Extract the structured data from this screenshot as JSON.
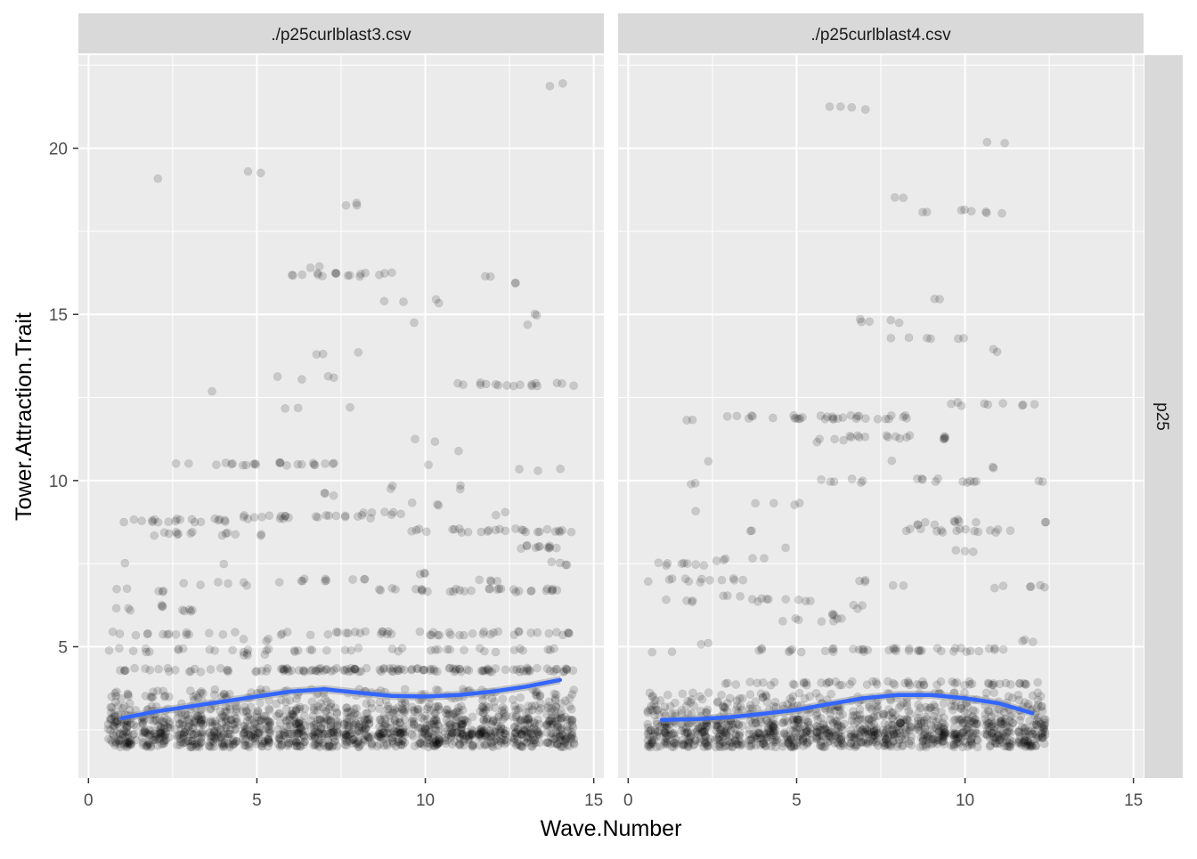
{
  "chart_data": {
    "type": "scatter",
    "xlabel": "Wave.Number",
    "ylabel": "Tower.Attraction.Trait",
    "xlim": [
      -0.3,
      15.3
    ],
    "ylim": [
      1.05,
      22.8
    ],
    "x_ticks": [
      0,
      5,
      10,
      15
    ],
    "y_ticks": [
      5,
      10,
      15,
      20
    ],
    "x_tick_labels": [
      "0",
      "5",
      "10",
      "15"
    ],
    "y_tick_labels": [
      "5",
      "10",
      "15",
      "20"
    ],
    "grid": true,
    "row_strip": "p25",
    "point_color": "#000000",
    "point_alpha": 0.15,
    "smooth_color": "#3366FF",
    "panels": [
      {
        "strip": "./p25curlblast3.csv",
        "common_levels": [
          [
            2.2,
            40
          ],
          [
            2.6,
            30
          ],
          [
            3.0,
            20
          ],
          [
            3.5,
            10
          ],
          [
            4.3,
            5
          ],
          [
            4.9,
            3
          ]
        ],
        "waves": [
          {
            "wave": 1,
            "levels": [
              [
                5.4,
                3
              ],
              [
                6.1,
                3
              ],
              [
                6.7,
                2
              ],
              [
                7.5,
                1
              ],
              [
                8.8,
                2
              ]
            ]
          },
          {
            "wave": 2,
            "levels": [
              [
                5.4,
                5
              ],
              [
                6.2,
                3
              ],
              [
                6.7,
                3
              ],
              [
                8.4,
                3
              ],
              [
                8.8,
                6
              ],
              [
                19.05,
                1
              ]
            ]
          },
          {
            "wave": 3,
            "levels": [
              [
                5.4,
                4
              ],
              [
                6.1,
                5
              ],
              [
                6.9,
                2
              ],
              [
                8.4,
                5
              ],
              [
                8.8,
                6
              ],
              [
                10.5,
                2
              ]
            ]
          },
          {
            "wave": 4,
            "levels": [
              [
                5.4,
                3
              ],
              [
                6.9,
                2
              ],
              [
                7.5,
                1
              ],
              [
                8.4,
                4
              ],
              [
                8.8,
                5
              ],
              [
                10.5,
                4
              ],
              [
                12.7,
                1
              ]
            ]
          },
          {
            "wave": 5,
            "levels": [
              [
                4.8,
                5
              ],
              [
                5.2,
                3
              ],
              [
                6.9,
                2
              ],
              [
                8.4,
                2
              ],
              [
                8.9,
                6
              ],
              [
                10.5,
                5
              ],
              [
                19.3,
                2
              ]
            ]
          },
          {
            "wave": 6,
            "levels": [
              [
                4.3,
                8
              ],
              [
                5.4,
                3
              ],
              [
                7.0,
                4
              ],
              [
                8.9,
                6
              ],
              [
                10.5,
                6
              ],
              [
                12.2,
                2
              ],
              [
                13.1,
                2
              ],
              [
                16.2,
                3
              ]
            ]
          },
          {
            "wave": 7,
            "levels": [
              [
                4.3,
                8
              ],
              [
                5.4,
                4
              ],
              [
                7.0,
                3
              ],
              [
                8.9,
                5
              ],
              [
                9.6,
                3
              ],
              [
                10.5,
                6
              ],
              [
                13.1,
                2
              ],
              [
                13.8,
                2
              ],
              [
                16.2,
                6
              ],
              [
                16.4,
                2
              ]
            ]
          },
          {
            "wave": 8,
            "levels": [
              [
                4.3,
                8
              ],
              [
                5.4,
                5
              ],
              [
                7.0,
                3
              ],
              [
                8.9,
                4
              ],
              [
                9.0,
                3
              ],
              [
                12.2,
                1
              ],
              [
                13.8,
                1
              ],
              [
                16.2,
                5
              ],
              [
                18.3,
                3
              ]
            ]
          },
          {
            "wave": 9,
            "levels": [
              [
                4.3,
                8
              ],
              [
                5.4,
                6
              ],
              [
                6.7,
                4
              ],
              [
                9.0,
                4
              ],
              [
                9.8,
                2
              ],
              [
                15.4,
                2
              ],
              [
                16.2,
                3
              ]
            ]
          },
          {
            "wave": 10,
            "levels": [
              [
                4.3,
                7
              ],
              [
                5.4,
                6
              ],
              [
                6.7,
                5
              ],
              [
                7.2,
                3
              ],
              [
                8.5,
                4
              ],
              [
                9.3,
                3
              ],
              [
                10.5,
                1
              ],
              [
                11.2,
                2
              ],
              [
                14.7,
                1
              ],
              [
                15.4,
                2
              ]
            ]
          },
          {
            "wave": 11,
            "levels": [
              [
                4.3,
                6
              ],
              [
                5.4,
                5
              ],
              [
                6.7,
                6
              ],
              [
                8.5,
                5
              ],
              [
                9.8,
                2
              ],
              [
                10.9,
                1
              ],
              [
                12.9,
                2
              ]
            ]
          },
          {
            "wave": 12,
            "levels": [
              [
                4.3,
                6
              ],
              [
                5.4,
                5
              ],
              [
                6.7,
                5
              ],
              [
                7.0,
                4
              ],
              [
                8.5,
                6
              ],
              [
                9.0,
                2
              ],
              [
                12.9,
                6
              ],
              [
                16.1,
                2
              ]
            ]
          },
          {
            "wave": 13,
            "levels": [
              [
                4.3,
                6
              ],
              [
                5.4,
                5
              ],
              [
                6.7,
                5
              ],
              [
                8.0,
                6
              ],
              [
                8.5,
                6
              ],
              [
                10.3,
                2
              ],
              [
                12.9,
                6
              ],
              [
                14.7,
                1
              ],
              [
                15.0,
                2
              ],
              [
                15.9,
                2
              ]
            ]
          },
          {
            "wave": 14,
            "levels": [
              [
                4.3,
                6
              ],
              [
                5.4,
                6
              ],
              [
                6.7,
                6
              ],
              [
                7.5,
                4
              ],
              [
                8.0,
                5
              ],
              [
                8.5,
                6
              ],
              [
                10.4,
                1
              ],
              [
                12.9,
                3
              ],
              [
                21.9,
                2
              ]
            ]
          }
        ],
        "smooth": {
          "x": [
            1,
            2,
            3,
            4,
            5,
            6,
            7,
            8,
            9,
            10,
            11,
            12,
            13,
            14
          ],
          "y": [
            2.85,
            3.05,
            3.2,
            3.35,
            3.5,
            3.65,
            3.72,
            3.62,
            3.52,
            3.5,
            3.55,
            3.65,
            3.8,
            4.0
          ]
        }
      },
      {
        "strip": "./p25curlblast4.csv",
        "common_levels": [
          [
            2.2,
            40
          ],
          [
            2.6,
            30
          ],
          [
            3.0,
            15
          ],
          [
            3.4,
            10
          ]
        ],
        "waves": [
          {
            "wave": 1,
            "levels": [
              [
                4.8,
                2
              ],
              [
                6.4,
                1
              ],
              [
                7.0,
                3
              ],
              [
                7.5,
                3
              ]
            ]
          },
          {
            "wave": 2,
            "levels": [
              [
                5.1,
                2
              ],
              [
                6.4,
                3
              ],
              [
                7.0,
                5
              ],
              [
                7.5,
                5
              ],
              [
                9.1,
                1
              ],
              [
                9.9,
                2
              ],
              [
                10.6,
                1
              ],
              [
                11.8,
                2
              ]
            ]
          },
          {
            "wave": 3,
            "levels": [
              [
                3.9,
                3
              ],
              [
                6.5,
                3
              ],
              [
                7.0,
                4
              ],
              [
                7.6,
                3
              ],
              [
                11.9,
                2
              ]
            ]
          },
          {
            "wave": 4,
            "levels": [
              [
                3.9,
                5
              ],
              [
                4.9,
                3
              ],
              [
                6.4,
                5
              ],
              [
                7.6,
                2
              ],
              [
                8.5,
                2
              ],
              [
                9.3,
                2
              ],
              [
                11.9,
                4
              ]
            ]
          },
          {
            "wave": 5,
            "levels": [
              [
                3.9,
                6
              ],
              [
                4.9,
                4
              ],
              [
                5.8,
                3
              ],
              [
                6.4,
                4
              ],
              [
                8.0,
                1
              ],
              [
                9.3,
                2
              ],
              [
                11.9,
                6
              ]
            ]
          },
          {
            "wave": 6,
            "levels": [
              [
                3.9,
                7
              ],
              [
                4.9,
                4
              ],
              [
                5.8,
                4
              ],
              [
                6.0,
                3
              ],
              [
                10.0,
                3
              ],
              [
                11.2,
                4
              ],
              [
                11.9,
                8
              ],
              [
                21.2,
                2
              ]
            ]
          },
          {
            "wave": 7,
            "levels": [
              [
                3.9,
                6
              ],
              [
                4.9,
                6
              ],
              [
                6.2,
                3
              ],
              [
                7.0,
                3
              ],
              [
                10.0,
                3
              ],
              [
                11.3,
                5
              ],
              [
                11.9,
                6
              ],
              [
                14.8,
                3
              ],
              [
                21.2,
                2
              ]
            ]
          },
          {
            "wave": 8,
            "levels": [
              [
                3.9,
                7
              ],
              [
                4.9,
                7
              ],
              [
                6.8,
                2
              ],
              [
                8.5,
                2
              ],
              [
                10.6,
                1
              ],
              [
                11.3,
                6
              ],
              [
                11.9,
                6
              ],
              [
                14.3,
                2
              ],
              [
                14.8,
                2
              ],
              [
                18.5,
                2
              ]
            ]
          },
          {
            "wave": 9,
            "levels": [
              [
                3.9,
                7
              ],
              [
                4.9,
                6
              ],
              [
                8.5,
                4
              ],
              [
                8.7,
                4
              ],
              [
                10.0,
                5
              ],
              [
                11.3,
                5
              ],
              [
                14.3,
                2
              ],
              [
                15.5,
                2
              ],
              [
                18.1,
                2
              ]
            ]
          },
          {
            "wave": 10,
            "levels": [
              [
                3.9,
                7
              ],
              [
                4.9,
                6
              ],
              [
                7.9,
                3
              ],
              [
                8.5,
                5
              ],
              [
                8.8,
                5
              ],
              [
                10.0,
                5
              ],
              [
                12.3,
                3
              ],
              [
                14.3,
                2
              ],
              [
                18.1,
                3
              ]
            ]
          },
          {
            "wave": 11,
            "levels": [
              [
                3.9,
                8
              ],
              [
                4.9,
                4
              ],
              [
                6.8,
                2
              ],
              [
                8.5,
                4
              ],
              [
                10.4,
                2
              ],
              [
                12.3,
                3
              ],
              [
                13.9,
                2
              ],
              [
                18.1,
                3
              ],
              [
                20.2,
                2
              ]
            ]
          },
          {
            "wave": 12,
            "levels": [
              [
                3.9,
                6
              ],
              [
                5.2,
                3
              ],
              [
                6.8,
                4
              ],
              [
                8.8,
                2
              ],
              [
                10.0,
                2
              ],
              [
                12.3,
                3
              ]
            ]
          }
        ],
        "smooth": {
          "x": [
            1,
            2,
            3,
            4,
            5,
            6,
            7,
            8,
            9,
            10,
            11,
            12
          ],
          "y": [
            2.8,
            2.82,
            2.88,
            2.98,
            3.1,
            3.28,
            3.45,
            3.55,
            3.55,
            3.45,
            3.3,
            3.0
          ]
        }
      }
    ]
  }
}
